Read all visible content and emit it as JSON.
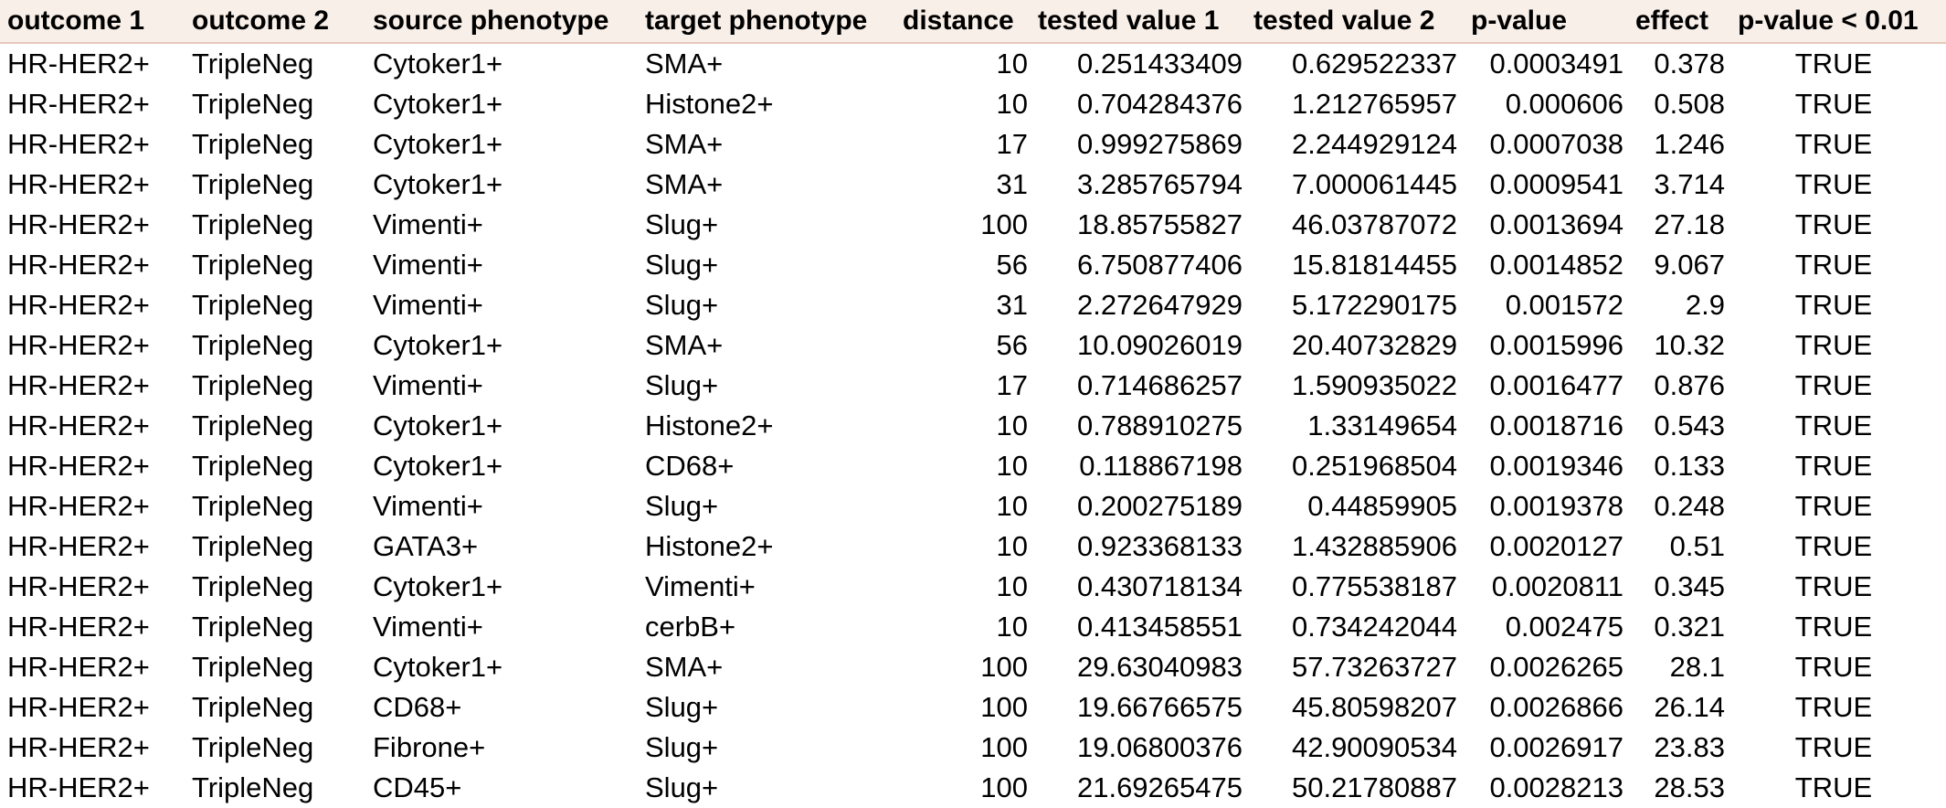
{
  "table": {
    "headers": [
      "outcome 1",
      "outcome 2",
      "source phenotype",
      "target phenotype",
      "distance",
      "tested value 1",
      "tested value 2",
      "p-value",
      "effect",
      "p-value < 0.01"
    ],
    "rows": [
      [
        "HR-HER2+",
        "TripleNeg",
        "Cytoker1+",
        "SMA+",
        "10",
        "0.251433409",
        "0.629522337",
        "0.0003491",
        "0.378",
        "TRUE"
      ],
      [
        "HR-HER2+",
        "TripleNeg",
        "Cytoker1+",
        "Histone2+",
        "10",
        "0.704284376",
        "1.212765957",
        "0.000606",
        "0.508",
        "TRUE"
      ],
      [
        "HR-HER2+",
        "TripleNeg",
        "Cytoker1+",
        "SMA+",
        "17",
        "0.999275869",
        "2.244929124",
        "0.0007038",
        "1.246",
        "TRUE"
      ],
      [
        "HR-HER2+",
        "TripleNeg",
        "Cytoker1+",
        "SMA+",
        "31",
        "3.285765794",
        "7.000061445",
        "0.0009541",
        "3.714",
        "TRUE"
      ],
      [
        "HR-HER2+",
        "TripleNeg",
        "Vimenti+",
        "Slug+",
        "100",
        "18.85755827",
        "46.03787072",
        "0.0013694",
        "27.18",
        "TRUE"
      ],
      [
        "HR-HER2+",
        "TripleNeg",
        "Vimenti+",
        "Slug+",
        "56",
        "6.750877406",
        "15.81814455",
        "0.0014852",
        "9.067",
        "TRUE"
      ],
      [
        "HR-HER2+",
        "TripleNeg",
        "Vimenti+",
        "Slug+",
        "31",
        "2.272647929",
        "5.172290175",
        "0.001572",
        "2.9",
        "TRUE"
      ],
      [
        "HR-HER2+",
        "TripleNeg",
        "Cytoker1+",
        "SMA+",
        "56",
        "10.09026019",
        "20.40732829",
        "0.0015996",
        "10.32",
        "TRUE"
      ],
      [
        "HR-HER2+",
        "TripleNeg",
        "Vimenti+",
        "Slug+",
        "17",
        "0.714686257",
        "1.590935022",
        "0.0016477",
        "0.876",
        "TRUE"
      ],
      [
        "HR-HER2+",
        "TripleNeg",
        "Cytoker1+",
        "Histone2+",
        "10",
        "0.788910275",
        "1.33149654",
        "0.0018716",
        "0.543",
        "TRUE"
      ],
      [
        "HR-HER2+",
        "TripleNeg",
        "Cytoker1+",
        "CD68+",
        "10",
        "0.118867198",
        "0.251968504",
        "0.0019346",
        "0.133",
        "TRUE"
      ],
      [
        "HR-HER2+",
        "TripleNeg",
        "Vimenti+",
        "Slug+",
        "10",
        "0.200275189",
        "0.44859905",
        "0.0019378",
        "0.248",
        "TRUE"
      ],
      [
        "HR-HER2+",
        "TripleNeg",
        "GATA3+",
        "Histone2+",
        "10",
        "0.923368133",
        "1.432885906",
        "0.0020127",
        "0.51",
        "TRUE"
      ],
      [
        "HR-HER2+",
        "TripleNeg",
        "Cytoker1+",
        "Vimenti+",
        "10",
        "0.430718134",
        "0.775538187",
        "0.0020811",
        "0.345",
        "TRUE"
      ],
      [
        "HR-HER2+",
        "TripleNeg",
        "Vimenti+",
        "cerbB+",
        "10",
        "0.413458551",
        "0.734242044",
        "0.002475",
        "0.321",
        "TRUE"
      ],
      [
        "HR-HER2+",
        "TripleNeg",
        "Cytoker1+",
        "SMA+",
        "100",
        "29.63040983",
        "57.73263727",
        "0.0026265",
        "28.1",
        "TRUE"
      ],
      [
        "HR-HER2+",
        "TripleNeg",
        "CD68+",
        "Slug+",
        "100",
        "19.66766575",
        "45.80598207",
        "0.0026866",
        "26.14",
        "TRUE"
      ],
      [
        "HR-HER2+",
        "TripleNeg",
        "Fibrone+",
        "Slug+",
        "100",
        "19.06800376",
        "42.90090534",
        "0.0026917",
        "23.83",
        "TRUE"
      ],
      [
        "HR-HER2+",
        "TripleNeg",
        "CD45+",
        "Slug+",
        "100",
        "21.69265475",
        "50.21780887",
        "0.0028213",
        "28.53",
        "TRUE"
      ]
    ]
  }
}
